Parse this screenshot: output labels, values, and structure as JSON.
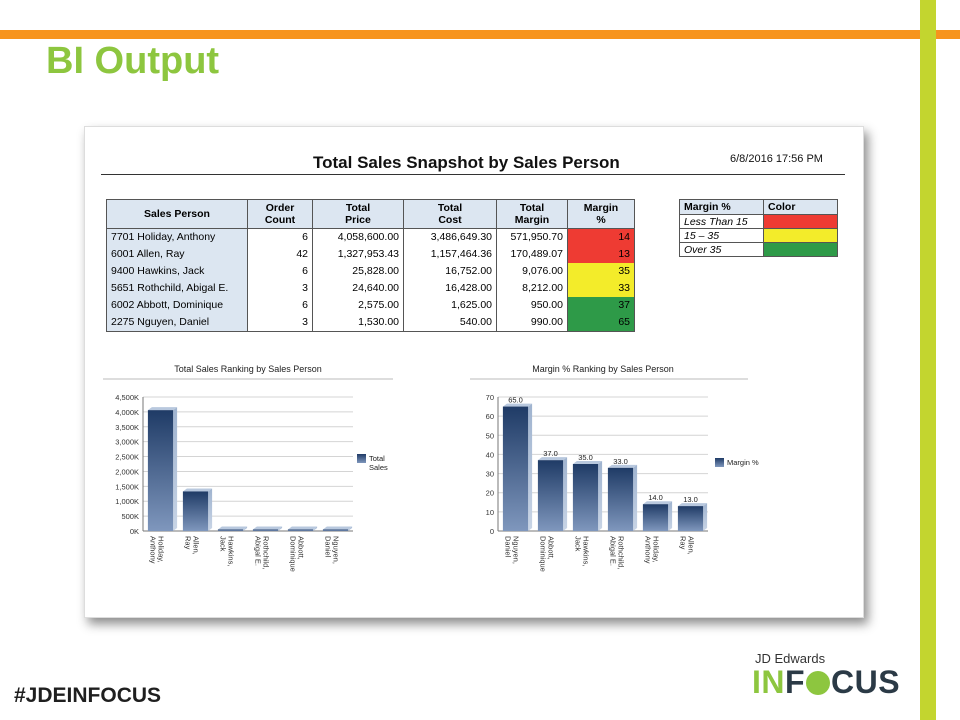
{
  "slide": {
    "title": "BI Output",
    "hashtag": "#JDEINFOCUS",
    "brand_small": "JD Edwards",
    "brand_in": "IN",
    "brand_cus": "CUS"
  },
  "report": {
    "title": "Total Sales Snapshot by Sales Person",
    "date": "6/8/2016 17:56 PM",
    "headers": [
      "Sales Person",
      "Order Count",
      "Total Price",
      "Total Cost",
      "Total Margin",
      "Margin %"
    ],
    "rows": [
      {
        "name": "7701 Holiday, Anthony",
        "count": "6",
        "price": "4,058,600.00",
        "cost": "3,486,649.30",
        "margin": "571,950.70",
        "pct": "14",
        "color": "#ee3b33"
      },
      {
        "name": "6001 Allen, Ray",
        "count": "42",
        "price": "1,327,953.43",
        "cost": "1,157,464.36",
        "margin": "170,489.07",
        "pct": "13",
        "color": "#ee3b33"
      },
      {
        "name": "9400 Hawkins, Jack",
        "count": "6",
        "price": "25,828.00",
        "cost": "16,752.00",
        "margin": "9,076.00",
        "pct": "35",
        "color": "#f3ec2a"
      },
      {
        "name": "5651 Rothchild, Abigal E.",
        "count": "3",
        "price": "24,640.00",
        "cost": "16,428.00",
        "margin": "8,212.00",
        "pct": "33",
        "color": "#f3ec2a"
      },
      {
        "name": "6002 Abbott, Dominique",
        "count": "6",
        "price": "2,575.00",
        "cost": "1,625.00",
        "margin": "950.00",
        "pct": "37",
        "color": "#2e9a48"
      },
      {
        "name": "2275 Nguyen, Daniel",
        "count": "3",
        "price": "1,530.00",
        "cost": "540.00",
        "margin": "990.00",
        "pct": "65",
        "color": "#2e9a48"
      }
    ]
  },
  "legend_table": {
    "headers": [
      "Margin %",
      "Color"
    ],
    "rows": [
      {
        "label": "Less Than 15",
        "color": "#ee3b33"
      },
      {
        "label": "15 – 35",
        "color": "#f3ec2a"
      },
      {
        "label": "Over 35",
        "color": "#2e9a48"
      }
    ]
  },
  "chart_data": [
    {
      "type": "bar",
      "title": "Total Sales Ranking by Sales Person",
      "categories": [
        "Holiday, Anthony",
        "Allen, Ray",
        "Hawkins, Jack",
        "Rothchild, Abigal E.",
        "Abbott, Dominique",
        "Nguyen, Daniel"
      ],
      "series": [
        {
          "name": "Total Sales",
          "values": [
            4058600,
            1327953.43,
            25828,
            24640,
            2575,
            1530
          ]
        }
      ],
      "yticks": [
        "0K",
        "500K",
        "1,000K",
        "1,500K",
        "2,000K",
        "2,500K",
        "3,000K",
        "3,500K",
        "4,000K",
        "4,500K"
      ],
      "ylim": [
        0,
        4500000
      ],
      "legend": "right",
      "grid": true,
      "data_labels": []
    },
    {
      "type": "bar",
      "title": "Margin % Ranking by Sales Person",
      "categories": [
        "Nguyen, Daniel",
        "Abbott, Dominique",
        "Hawkins, Jack",
        "Rothchild, Abigal E.",
        "Holiday, Anthony",
        "Allen, Ray"
      ],
      "series": [
        {
          "name": "Margin %",
          "values": [
            65,
            37,
            35,
            33,
            14,
            13
          ]
        }
      ],
      "yticks": [
        "0",
        "10",
        "20",
        "30",
        "40",
        "50",
        "60",
        "70"
      ],
      "ylim": [
        0,
        70
      ],
      "legend": "right",
      "grid": true,
      "data_labels": [
        "65.0",
        "37.0",
        "35.0",
        "33.0",
        "14.0",
        "13.0"
      ]
    }
  ]
}
